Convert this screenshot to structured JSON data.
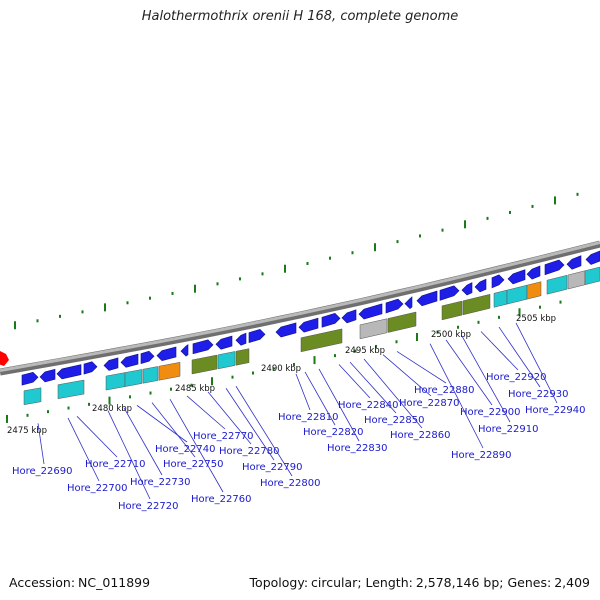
{
  "title": "Halothermothrix orenii H 168, complete genome",
  "footer": {
    "accession_label": "Accession:",
    "accession": "NC_011899",
    "topology_label": "Topology:",
    "topology": "circular",
    "length_label": "Length:",
    "length": "2,578,146 bp",
    "genes_label": "Genes:",
    "genes": "2,409"
  },
  "colors": {
    "forward_gene": "#1e1ee8",
    "reverse_gene": "#1e1ee8",
    "cyan_feature": "#20c8d0",
    "olive_feature": "#6b8c22",
    "orange_feature": "#f08c10",
    "grey_feature": "#b8b8b8",
    "backbone": "#8a8a8a",
    "tick": "#1a7a1a",
    "origin_marker": "#ff0000"
  },
  "scale_labels": [
    {
      "text": "2475 kbp"
    },
    {
      "text": "2480 kbp"
    },
    {
      "text": "2485 kbp"
    },
    {
      "text": "2490 kbp"
    },
    {
      "text": "2495 kbp"
    },
    {
      "text": "2500 kbp"
    },
    {
      "text": "2505 kbp"
    }
  ],
  "gene_labels": [
    "Hore_22690",
    "Hore_22700",
    "Hore_22710",
    "Hore_22720",
    "Hore_22730",
    "Hore_22740",
    "Hore_22750",
    "Hore_22760",
    "Hore_22770",
    "Hore_22780",
    "Hore_22790",
    "Hore_22800",
    "Hore_22810",
    "Hore_22820",
    "Hore_22830",
    "Hore_22840",
    "Hore_22850",
    "Hore_22860",
    "Hore_22870",
    "Hore_22880",
    "Hore_22890",
    "Hore_22900",
    "Hore_22910",
    "Hore_22920",
    "Hore_22930",
    "Hore_22940"
  ]
}
